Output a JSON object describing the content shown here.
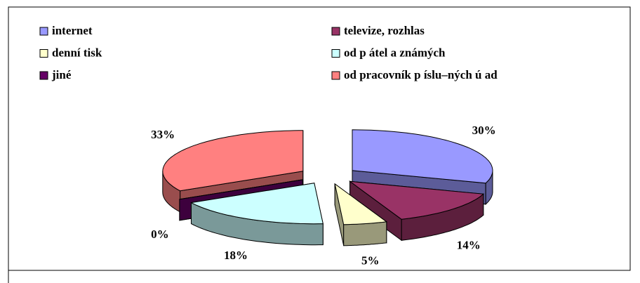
{
  "chart_data": {
    "type": "pie3d",
    "categories": [
      "internet",
      "televize, rozhlas",
      "denní tisk",
      "od p átel a známých",
      "jiné",
      "od pracovník p íslu–ných ú ad"
    ],
    "values": [
      30,
      14,
      5,
      18,
      0,
      33
    ],
    "value_labels": [
      "30%",
      "14%",
      "5%",
      "18%",
      "0%",
      "33%"
    ],
    "colors": [
      "#9999ff",
      "#993366",
      "#ffffcc",
      "#ccffff",
      "#660066",
      "#ff8080"
    ],
    "legend": "top",
    "exploded": true
  }
}
